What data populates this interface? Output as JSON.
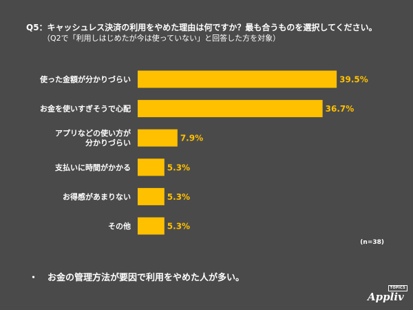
{
  "header": {
    "title": "Q5：キャッシュレス決済の利用をやめた理由は何ですか？最も合うものを選択してください。",
    "subtitle": "（Q2で「利用しはじめたが今は使っていない」と回答した方を対象）"
  },
  "chart_data": {
    "type": "bar",
    "orientation": "horizontal",
    "categories": [
      [
        "使った金額が分かりづらい"
      ],
      [
        "お金を使いすぎそうで心配"
      ],
      [
        "アプリなどの使い方が",
        "分かりづらい"
      ],
      [
        "支払いに時間がかかる"
      ],
      [
        "お得感があまりない"
      ],
      [
        "その他"
      ]
    ],
    "values": [
      39.5,
      36.7,
      7.9,
      5.3,
      5.3,
      5.3
    ],
    "value_labels": [
      "39.5%",
      "36.7%",
      "7.9%",
      "5.3%",
      "5.3%",
      "5.3%"
    ],
    "unit": "%",
    "xlim": [
      0,
      50
    ],
    "grid": false,
    "bar_color": "#ffc000",
    "value_label_color": "#ffc000"
  },
  "sample_note": "(n=38)",
  "takeaway": {
    "bullet": "・",
    "text": "お金の管理方法が要因で利用をやめた人が多い。"
  },
  "logo": {
    "tag": "TOPICS",
    "name": "Appliv"
  },
  "colors": {
    "background": "#4a4a4a",
    "text": "#ffffff",
    "accent": "#ffc000"
  }
}
